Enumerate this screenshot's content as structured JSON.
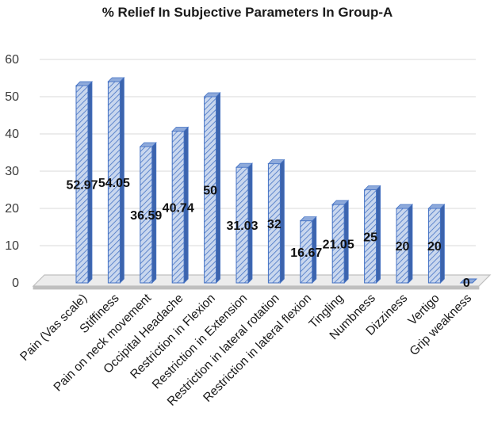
{
  "chart_data": {
    "type": "bar",
    "title": "% Relief In Subjective Parameters In Group-A",
    "xlabel": "",
    "ylabel": "",
    "ylim": [
      0,
      60
    ],
    "yticks": [
      0,
      10,
      20,
      30,
      40,
      50,
      60
    ],
    "grid": true,
    "style": "3d-hatched",
    "colors": {
      "bar_fill": "#c9d7ee",
      "bar_stroke": "#4472c4",
      "hatch": "#4472c4",
      "bar_side": "#3c64ad",
      "bar_top": "#8eaadb",
      "floor": "#bfbfbf"
    },
    "categories": [
      "Pain (Vas scale)",
      "Stiffiness",
      "Pain on neck movement",
      "Occipital Headache",
      "Restriction in Flexion",
      "Restriction in Extension",
      "Restriction in lateral rotation",
      "Restriction in lateral flexion",
      "Tingling",
      "Numbness",
      "Dizziness",
      "Vertigo",
      "Grip weakness"
    ],
    "values": [
      52.97,
      54.05,
      36.59,
      40.74,
      50,
      31.03,
      32,
      16.67,
      21.05,
      25,
      20,
      20,
      0
    ],
    "data_labels": [
      "52.97",
      "54.05",
      "36.59",
      "40.74",
      "50",
      "31.03",
      "32",
      "16.67",
      "21.05",
      "25",
      "20",
      "20",
      "0"
    ]
  }
}
